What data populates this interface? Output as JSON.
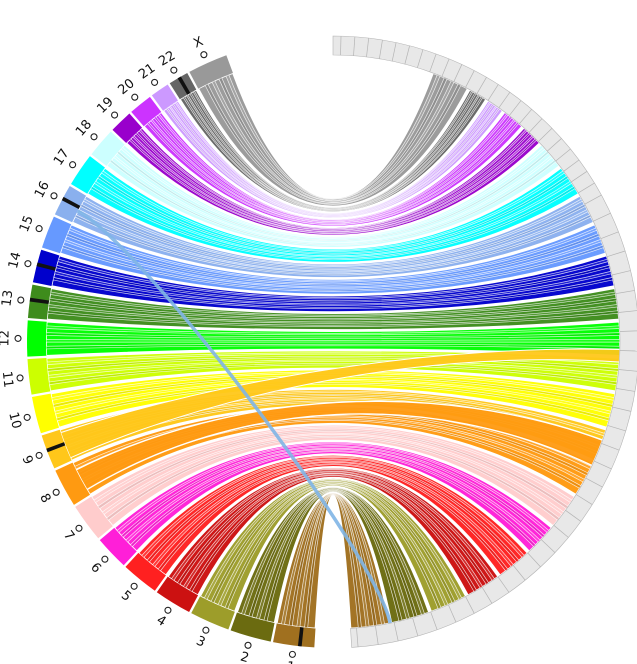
{
  "diagram": {
    "type": "circos-ribbon",
    "ring_empty_color": "#e8e8e8",
    "ring_tick_color": "#b4b4b4",
    "translocation_color": "#7fb5e6",
    "chromosomes": [
      {
        "label": "1",
        "color": "#a0701f",
        "band": true
      },
      {
        "label": "2",
        "color": "#6b6b10"
      },
      {
        "label": "3",
        "color": "#9d9d2a"
      },
      {
        "label": "4",
        "color": "#cc1111"
      },
      {
        "label": "5",
        "color": "#ff2020"
      },
      {
        "label": "6",
        "color": "#ff1fd8"
      },
      {
        "label": "7",
        "color": "#ffcccc"
      },
      {
        "label": "8",
        "color": "#ff9a11"
      },
      {
        "label": "9",
        "color": "#ffc71a",
        "band": true
      },
      {
        "label": "10",
        "color": "#ffff00"
      },
      {
        "label": "11",
        "color": "#ccff00"
      },
      {
        "label": "12",
        "color": "#00ff00"
      },
      {
        "label": "13",
        "color": "#3e8c1c",
        "band": true
      },
      {
        "label": "14",
        "color": "#0000cc",
        "band": true
      },
      {
        "label": "15",
        "color": "#6699ff"
      },
      {
        "label": "16",
        "color": "#8ab0ee",
        "band": true
      },
      {
        "label": "17",
        "color": "#00ffff"
      },
      {
        "label": "18",
        "color": "#ccffff"
      },
      {
        "label": "19",
        "color": "#9900cc"
      },
      {
        "label": "20",
        "color": "#cc33ff"
      },
      {
        "label": "21",
        "color": "#cc99ff"
      },
      {
        "label": "22",
        "color": "#666666",
        "band": true
      },
      {
        "label": "X",
        "color": "#999999"
      }
    ]
  }
}
